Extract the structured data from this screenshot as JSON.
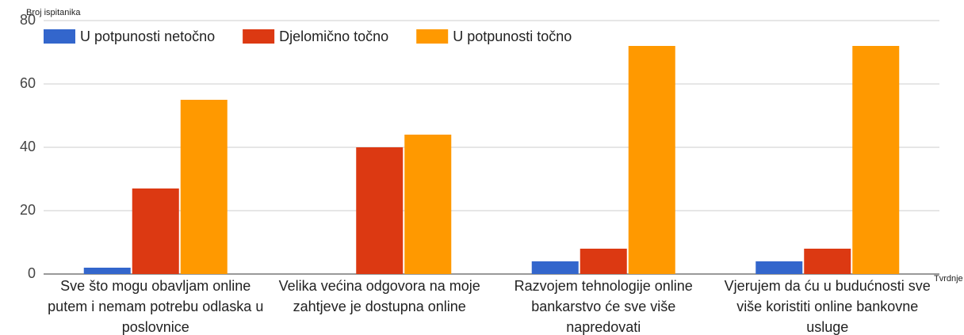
{
  "chart_data": {
    "type": "bar",
    "y_axis_label": "Broj ispitanika",
    "x_axis_label": "Tvrdnje",
    "categories": [
      "Sve što mogu obavljam online putem i nemam potrebu odlaska u poslovnice",
      "Velika većina odgovora na moje zahtjeve je dostupna online",
      "Razvojem tehnologije online bankarstvo će sve više napredovati",
      "Vjerujem da ću u budućnosti sve više koristiti online bankovne usluge"
    ],
    "series": [
      {
        "name": "U potpunosti netočno",
        "color": "#3366cc",
        "values": [
          2,
          0,
          4,
          4
        ]
      },
      {
        "name": "Djelomično točno",
        "color": "#dc3912",
        "values": [
          27,
          40,
          8,
          8
        ]
      },
      {
        "name": "U potpunosti točno",
        "color": "#ff9900",
        "values": [
          55,
          44,
          72,
          72
        ]
      }
    ],
    "ylim": [
      0,
      80
    ],
    "yticks": [
      0,
      20,
      40,
      60,
      80
    ],
    "grid": true,
    "legend": "top"
  }
}
